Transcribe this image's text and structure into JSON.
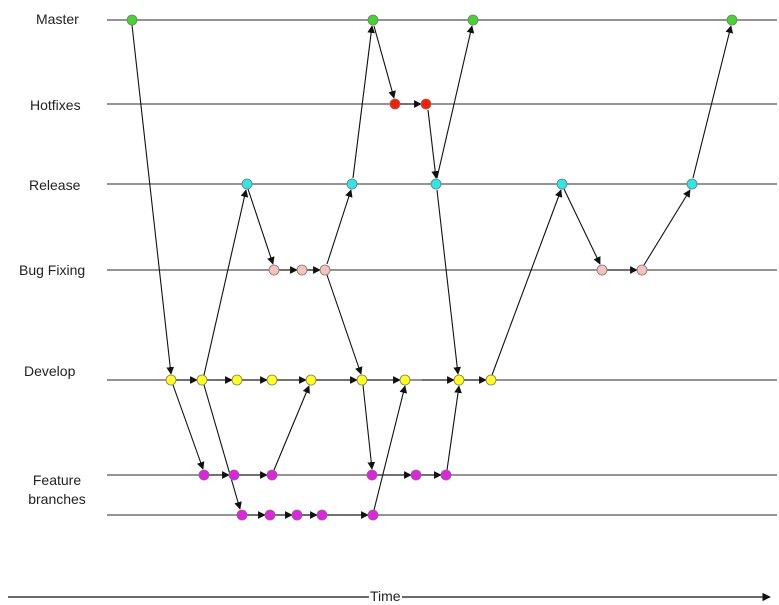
{
  "lanes": {
    "master": "Master",
    "hotfixes": "Hotfixes",
    "release": "Release",
    "bugfixing": "Bug Fixing",
    "develop": "Develop",
    "feature_line1": "Feature",
    "feature_line2": "branches"
  },
  "axis": {
    "time_label": "Time"
  },
  "colors": {
    "master": "#44d62c",
    "hotfix": "#ff1a00",
    "release": "#2de8e8",
    "bugfix": "#f7c2bd",
    "develop": "#ffff1a",
    "feature": "#e61ee6",
    "line": "#555555",
    "arrow": "#111111"
  }
}
